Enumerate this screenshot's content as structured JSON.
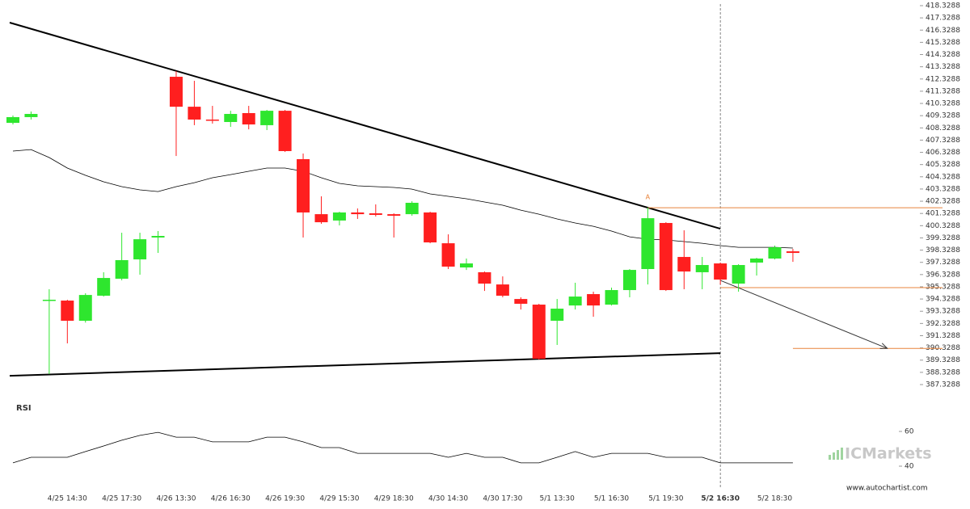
{
  "chart_data": {
    "type": "candlestick",
    "categories": [
      null,
      null,
      null,
      "4/25 14:30",
      null,
      null,
      "4/25 17:30",
      null,
      null,
      "4/26 13:30",
      null,
      null,
      "4/26 16:30",
      null,
      null,
      "4/26 19:30",
      null,
      null,
      "4/29 15:30",
      null,
      null,
      "4/29 18:30",
      null,
      null,
      "4/30 14:30",
      null,
      null,
      "4/30 17:30",
      null,
      null,
      "5/1 13:30",
      null,
      null,
      "5/1 16:30",
      null,
      null,
      "5/1 19:30",
      null,
      null,
      "5/2 16:30",
      null,
      null,
      "5/2 18:30",
      null
    ],
    "highlight_category": 39,
    "open": [
      408.74,
      409.21,
      394.2,
      394.2,
      392.55,
      394.6,
      395.99,
      397.57,
      399.36,
      412.51,
      410.06,
      409.01,
      408.81,
      409.54,
      408.55,
      409.73,
      405.77,
      401.27,
      400.75,
      401.41,
      401.34,
      401.27,
      401.27,
      401.41,
      398.89,
      396.91,
      396.52,
      395.52,
      394.33,
      393.87,
      392.55,
      393.8,
      394.73,
      393.87,
      395.06,
      396.78,
      400.55,
      397.77,
      396.52,
      397.24,
      395.59,
      397.31,
      397.64,
      398.23
    ],
    "high": [
      409.34,
      409.67,
      395.13,
      394.27,
      394.8,
      396.52,
      399.75,
      399.75,
      399.89,
      412.97,
      412.18,
      410.13,
      409.73,
      410.13,
      409.8,
      409.8,
      406.23,
      402.73,
      401.47,
      401.74,
      402.07,
      401.34,
      402.33,
      401.47,
      399.62,
      397.64,
      396.58,
      396.18,
      394.47,
      393.94,
      394.33,
      395.66,
      394.93,
      395.26,
      396.78,
      401.8,
      400.61,
      399.95,
      397.77,
      397.31,
      397.18,
      397.7,
      398.7,
      398.43
    ],
    "low": [
      408.61,
      409.01,
      388.19,
      390.7,
      392.4,
      394.53,
      395.86,
      396.32,
      398.1,
      406.03,
      408.55,
      408.68,
      408.41,
      408.21,
      408.15,
      406.36,
      399.36,
      400.48,
      400.35,
      400.88,
      401.08,
      399.36,
      401.14,
      398.89,
      396.78,
      396.71,
      394.99,
      394.47,
      393.47,
      389.37,
      390.57,
      393.47,
      392.88,
      393.8,
      394.47,
      395.52,
      394.99,
      395.13,
      395.13,
      395.52,
      394.93,
      396.25,
      397.57,
      397.37
    ],
    "close": [
      409.21,
      409.47,
      394.27,
      392.55,
      394.66,
      396.05,
      397.51,
      399.22,
      399.49,
      410.06,
      409.01,
      408.94,
      409.47,
      408.61,
      409.73,
      406.43,
      401.41,
      400.61,
      401.41,
      401.27,
      401.21,
      401.14,
      402.2,
      398.96,
      396.98,
      397.24,
      395.59,
      394.6,
      393.94,
      389.44,
      393.54,
      394.53,
      393.8,
      395.06,
      396.71,
      400.94,
      395.06,
      396.58,
      397.11,
      395.92,
      397.11,
      397.64,
      398.56,
      398.1
    ],
    "up_color": "#2ee62e",
    "down_color": "#ff1f1f",
    "ma": {
      "color": "#000000",
      "values": [
        406.43,
        406.56,
        405.9,
        405.04,
        404.45,
        403.92,
        403.52,
        403.26,
        403.12,
        403.52,
        403.85,
        404.25,
        404.51,
        404.78,
        405.04,
        405.04,
        404.78,
        404.25,
        403.79,
        403.59,
        403.52,
        403.46,
        403.32,
        402.93,
        402.73,
        402.53,
        402.27,
        402.0,
        401.6,
        401.27,
        400.88,
        400.55,
        400.28,
        399.89,
        399.42,
        399.22,
        399.16,
        399.03,
        398.89,
        398.7,
        398.56,
        398.56,
        398.56,
        398.5
      ]
    },
    "trend_lines": [
      {
        "x": [
          0,
          39
        ],
        "y": [
          416.94,
          400.08
        ]
      },
      {
        "x": [
          0,
          39
        ],
        "y": [
          388.05,
          389.9
        ]
      }
    ],
    "levels": [
      {
        "value": 401.8,
        "from": 35
      },
      {
        "value": 395.26,
        "from": 39
      },
      {
        "value": 390.29,
        "from": 43
      }
    ],
    "level_color": "#e8843c",
    "forecast_arrow": {
      "x": [
        39,
        48.2
      ],
      "y": [
        395.85,
        390.29
      ]
    },
    "pattern_point": {
      "label": "A",
      "index": 35,
      "value": 402.66
    },
    "ylim": [
      387.3288,
      418.3288
    ],
    "yticks": [
      387.3288,
      388.3288,
      389.3288,
      390.3288,
      391.3288,
      392.3288,
      393.3288,
      394.3288,
      395.3288,
      396.3288,
      397.3288,
      398.3288,
      399.3288,
      400.3288,
      401.3288,
      402.3288,
      403.3288,
      404.3288,
      405.3288,
      406.3288,
      407.3288,
      408.3288,
      409.3288,
      410.3288,
      411.3288,
      412.3288,
      413.3288,
      414.3288,
      415.3288,
      416.3288,
      417.3288,
      418.3288
    ],
    "rsi": {
      "title": "RSI",
      "color": "#000000",
      "values": [
        41.9,
        45.1,
        45.1,
        45.1,
        48.4,
        51.6,
        54.9,
        57.7,
        59.5,
        56.7,
        56.7,
        54.0,
        54.0,
        54.0,
        56.7,
        56.7,
        54.0,
        50.7,
        50.7,
        47.4,
        47.4,
        47.4,
        47.4,
        47.4,
        45.1,
        47.4,
        45.1,
        45.1,
        41.9,
        41.9,
        45.1,
        48.4,
        45.1,
        47.4,
        47.4,
        47.4,
        45.1,
        45.1,
        45.1,
        41.9,
        41.9,
        41.9,
        41.9,
        41.9
      ],
      "ylim": [
        29.3,
        75.8
      ],
      "yticks": [
        40,
        60
      ]
    },
    "watermark": "ICMarkets",
    "source": "www.autochartist.com"
  }
}
